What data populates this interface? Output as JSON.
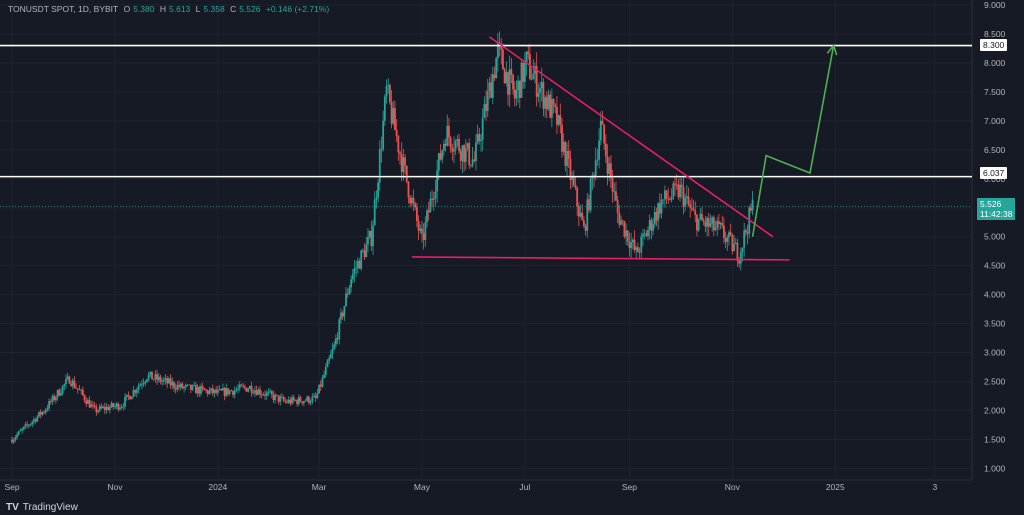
{
  "header": {
    "symbol": "TONUSDT SPOT, 1D, BYBIT",
    "open_label": "O",
    "open": "5.380",
    "high_label": "H",
    "high": "5.613",
    "low_label": "L",
    "low": "5.358",
    "close_label": "C",
    "close": "5.526",
    "change": "+0.146 (+2.71%)"
  },
  "brand": {
    "logo": "TV",
    "name": "TradingView"
  },
  "tags": {
    "resistance_top": "8.300",
    "resistance_mid": "6.037",
    "last_price": "5.526",
    "countdown": "11:42:38"
  },
  "colors": {
    "background": "#161a25",
    "up": "#26a69a",
    "down": "#ef5350",
    "trendline": "#e91e63",
    "projection": "#4caf50",
    "level": "#ffffff"
  },
  "chart_data": {
    "type": "candlestick",
    "symbol": "TONUSDT",
    "interval": "1D",
    "y_scale": "linear",
    "ylim": [
      0.8,
      9.0
    ],
    "y_ticks": [
      "1.000",
      "1.500",
      "2.000",
      "2.500",
      "3.000",
      "3.500",
      "4.000",
      "4.500",
      "5.000",
      "5.500",
      "6.000",
      "6.500",
      "7.000",
      "7.500",
      "8.000",
      "8.500",
      "9.000"
    ],
    "x_range": [
      "2023-09-01",
      "2025-03-10"
    ],
    "x_ticks": [
      {
        "label": "Sep",
        "date": "2023-09-01"
      },
      {
        "label": "Nov",
        "date": "2023-11-01"
      },
      {
        "label": "2024",
        "date": "2024-01-01"
      },
      {
        "label": "Mar",
        "date": "2024-03-01"
      },
      {
        "label": "May",
        "date": "2024-05-01"
      },
      {
        "label": "Jul",
        "date": "2024-07-01"
      },
      {
        "label": "Sep",
        "date": "2024-09-01"
      },
      {
        "label": "Nov",
        "date": "2024-11-01"
      },
      {
        "label": "2025",
        "date": "2025-01-01"
      },
      {
        "label": "3",
        "date": "2025-03-01"
      }
    ],
    "price_path": [
      [
        "2023-09-01",
        1.5
      ],
      [
        "2023-09-20",
        2.0
      ],
      [
        "2023-10-05",
        2.55
      ],
      [
        "2023-10-20",
        2.0
      ],
      [
        "2023-11-05",
        2.1
      ],
      [
        "2023-11-20",
        2.6
      ],
      [
        "2023-12-10",
        2.4
      ],
      [
        "2024-01-01",
        2.3
      ],
      [
        "2024-01-20",
        2.4
      ],
      [
        "2024-02-10",
        2.15
      ],
      [
        "2024-02-28",
        2.2
      ],
      [
        "2024-03-10",
        3.1
      ],
      [
        "2024-03-20",
        4.3
      ],
      [
        "2024-04-01",
        5.0
      ],
      [
        "2024-04-10",
        7.5
      ],
      [
        "2024-04-20",
        6.2
      ],
      [
        "2024-05-01",
        4.9
      ],
      [
        "2024-05-15",
        6.8
      ],
      [
        "2024-06-01",
        6.3
      ],
      [
        "2024-06-15",
        8.2
      ],
      [
        "2024-06-25",
        7.4
      ],
      [
        "2024-07-02",
        8.0
      ],
      [
        "2024-07-20",
        7.0
      ],
      [
        "2024-08-05",
        5.1
      ],
      [
        "2024-08-15",
        6.9
      ],
      [
        "2024-08-25",
        5.4
      ],
      [
        "2024-09-05",
        4.7
      ],
      [
        "2024-09-20",
        5.6
      ],
      [
        "2024-10-01",
        5.8
      ],
      [
        "2024-10-10",
        5.3
      ],
      [
        "2024-10-25",
        5.1
      ],
      [
        "2024-11-05",
        4.7
      ],
      [
        "2024-11-13",
        5.526
      ]
    ],
    "last": {
      "open": 5.38,
      "high": 5.613,
      "low": 5.358,
      "close": 5.526,
      "change": 0.146,
      "change_pct": 2.71
    },
    "horizontal_levels": [
      8.3,
      6.037
    ],
    "annotations": [
      {
        "type": "descending-resistance",
        "from": [
          "2024-06-10",
          8.45
        ],
        "to": [
          "2024-11-25",
          5.0
        ]
      },
      {
        "type": "support",
        "from": [
          "2024-04-25",
          4.65
        ],
        "to": [
          "2024-12-05",
          4.6
        ]
      },
      {
        "type": "projection",
        "points": [
          [
            "2024-11-13",
            5.0
          ],
          [
            "2024-11-21",
            6.4
          ],
          [
            "2024-12-17",
            6.1
          ],
          [
            "2024-12-31",
            8.3
          ]
        ]
      }
    ]
  }
}
